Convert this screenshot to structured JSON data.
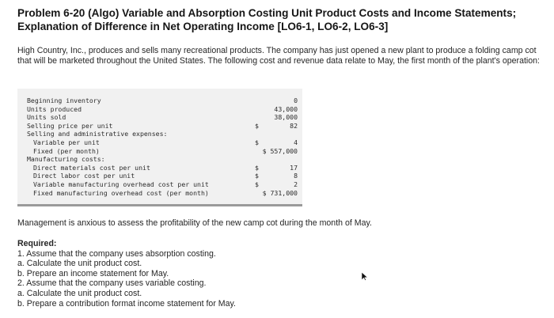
{
  "title": "Problem 6-20 (Algo) Variable and Absorption Costing Unit Product Costs and Income Statements; Explanation of Difference in Net Operating Income [LO6-1, LO6-2, LO6-3]",
  "intro": "High Country, Inc., produces and sells many recreational products. The company has just opened a new plant to produce a folding camp cot that will be marketed throughout the United States. The following cost and revenue data relate to May, the first month of the plant's operation:",
  "table": [
    {
      "label": "Beginning inventory",
      "indent": 0,
      "currency": "",
      "value": "0"
    },
    {
      "label": "Units produced",
      "indent": 0,
      "currency": "",
      "value": "43,000"
    },
    {
      "label": "Units sold",
      "indent": 0,
      "currency": "",
      "value": "38,000"
    },
    {
      "label": "Selling price per unit",
      "indent": 0,
      "currency": "$",
      "value": "82"
    },
    {
      "label": "Selling and administrative expenses:",
      "indent": 0,
      "currency": "",
      "value": ""
    },
    {
      "label": "Variable per unit",
      "indent": 1,
      "currency": "$",
      "value": "4"
    },
    {
      "label": "Fixed (per month)",
      "indent": 1,
      "currency": "",
      "value": "$ 557,000"
    },
    {
      "label": "Manufacturing costs:",
      "indent": 0,
      "currency": "",
      "value": ""
    },
    {
      "label": "Direct materials cost per unit",
      "indent": 1,
      "currency": "$",
      "value": "17"
    },
    {
      "label": "Direct labor cost per unit",
      "indent": 1,
      "currency": "$",
      "value": "8"
    },
    {
      "label": "Variable manufacturing overhead cost per unit",
      "indent": 1,
      "currency": "$",
      "value": "2"
    },
    {
      "label": "Fixed manufacturing overhead cost (per month)",
      "indent": 1,
      "currency": "",
      "value": "$ 731,000"
    }
  ],
  "management": "Management is anxious to assess the profitability of the new camp cot during the month of May.",
  "required": {
    "heading": "Required:",
    "items": [
      "1. Assume that the company uses absorption costing.",
      "a. Calculate the unit product cost.",
      "b. Prepare an income statement for May.",
      "2. Assume that the company uses variable costing.",
      "a. Calculate the unit product cost.",
      "b. Prepare a contribution format income statement for May."
    ]
  },
  "colors": {
    "table_bg": "#f1f1f1",
    "table_rule": "#9a9a9a",
    "text": "#262626"
  },
  "icons": {
    "cursor": "mouse-pointer-icon"
  }
}
